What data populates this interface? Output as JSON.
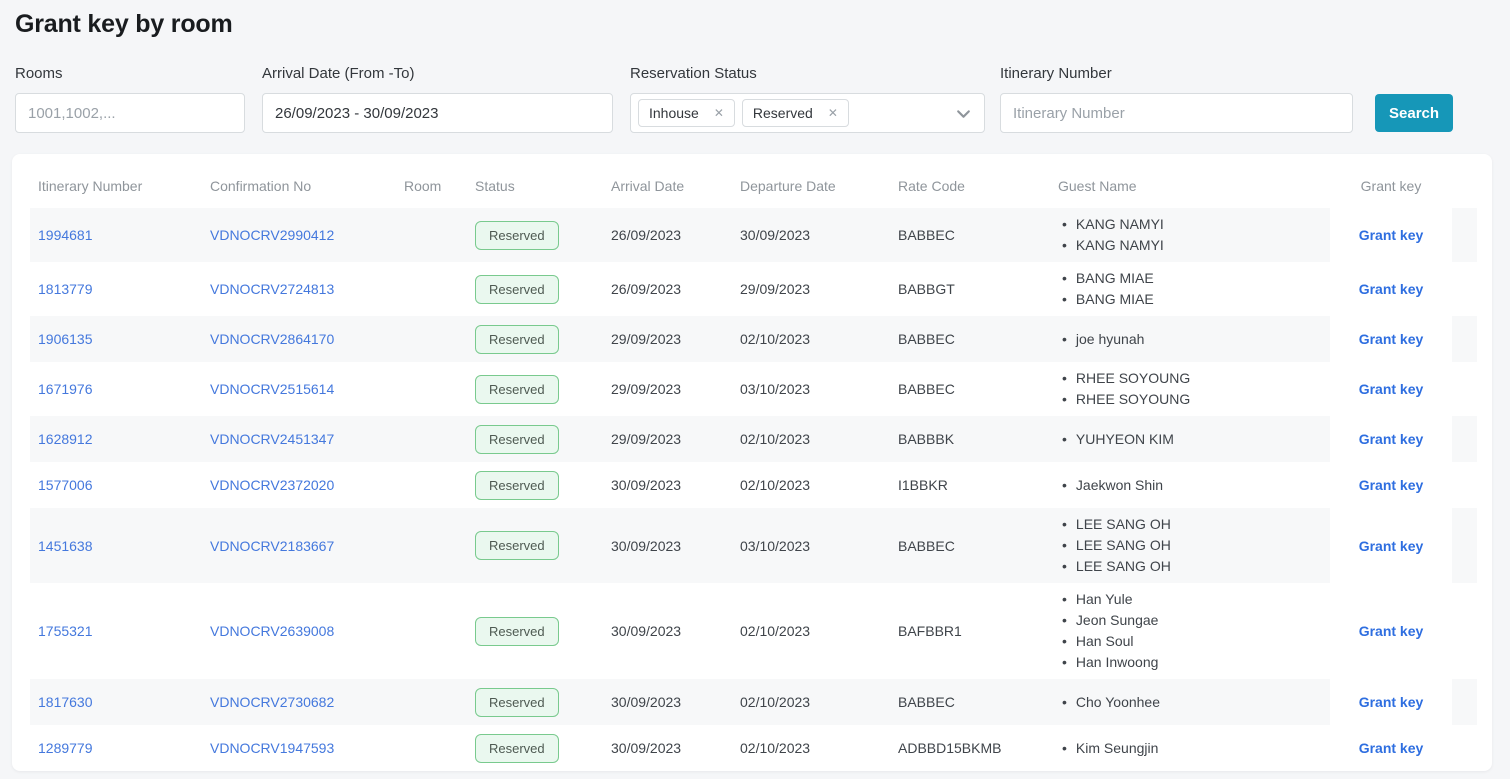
{
  "page": {
    "title": "Grant key by room"
  },
  "filters": {
    "rooms": {
      "label": "Rooms",
      "placeholder": "1001,1002,..."
    },
    "arrival_date": {
      "label": "Arrival Date (From -To)",
      "value": "26/09/2023 - 30/09/2023"
    },
    "reservation_status": {
      "label": "Reservation Status",
      "selected": [
        "Inhouse",
        "Reserved"
      ]
    },
    "itinerary_number": {
      "label": "Itinerary Number",
      "placeholder": "Itinerary Number"
    },
    "search_button": "Search"
  },
  "icons": {
    "close_glyph": "✕",
    "chevron_down": "chevron-down",
    "bullet": "•"
  },
  "colors": {
    "accent_teal": "#1697b8",
    "link_blue": "#4478dd",
    "grant_link_blue": "#2e6ee0",
    "badge_green_border": "#79ca8e",
    "badge_green_bg": "#eaf8ef",
    "stripe_gray": "#f7f8f9",
    "page_bg": "#f5f6f8"
  },
  "table": {
    "headers": [
      "Itinerary Number",
      "Confirmation No",
      "Room",
      "Status",
      "Arrival Date",
      "Departure Date",
      "Rate Code",
      "Guest Name",
      "Grant key"
    ],
    "grant_key_action": "Grant key",
    "rows": [
      {
        "itinerary_number": "1994681",
        "confirmation_no": "VDNOCRV2990412",
        "room": "",
        "status": "Reserved",
        "arrival_date": "26/09/2023",
        "departure_date": "30/09/2023",
        "rate_code": "BABBEC",
        "guests": [
          "KANG NAMYI",
          "KANG NAMYI"
        ]
      },
      {
        "itinerary_number": "1813779",
        "confirmation_no": "VDNOCRV2724813",
        "room": "",
        "status": "Reserved",
        "arrival_date": "26/09/2023",
        "departure_date": "29/09/2023",
        "rate_code": "BABBGT",
        "guests": [
          "BANG MIAE",
          "BANG MIAE"
        ]
      },
      {
        "itinerary_number": "1906135",
        "confirmation_no": "VDNOCRV2864170",
        "room": "",
        "status": "Reserved",
        "arrival_date": "29/09/2023",
        "departure_date": "02/10/2023",
        "rate_code": "BABBEC",
        "guests": [
          "joe hyunah"
        ]
      },
      {
        "itinerary_number": "1671976",
        "confirmation_no": "VDNOCRV2515614",
        "room": "",
        "status": "Reserved",
        "arrival_date": "29/09/2023",
        "departure_date": "03/10/2023",
        "rate_code": "BABBEC",
        "guests": [
          "RHEE SOYOUNG",
          "RHEE SOYOUNG"
        ]
      },
      {
        "itinerary_number": "1628912",
        "confirmation_no": "VDNOCRV2451347",
        "room": "",
        "status": "Reserved",
        "arrival_date": "29/09/2023",
        "departure_date": "02/10/2023",
        "rate_code": "BABBBK",
        "guests": [
          "YUHYEON KIM"
        ]
      },
      {
        "itinerary_number": "1577006",
        "confirmation_no": "VDNOCRV2372020",
        "room": "",
        "status": "Reserved",
        "arrival_date": "30/09/2023",
        "departure_date": "02/10/2023",
        "rate_code": "I1BBKR",
        "guests": [
          "Jaekwon Shin"
        ]
      },
      {
        "itinerary_number": "1451638",
        "confirmation_no": "VDNOCRV2183667",
        "room": "",
        "status": "Reserved",
        "arrival_date": "30/09/2023",
        "departure_date": "03/10/2023",
        "rate_code": "BABBEC",
        "guests": [
          "LEE SANG OH",
          "LEE SANG OH",
          "LEE SANG OH"
        ]
      },
      {
        "itinerary_number": "1755321",
        "confirmation_no": "VDNOCRV2639008",
        "room": "",
        "status": "Reserved",
        "arrival_date": "30/09/2023",
        "departure_date": "02/10/2023",
        "rate_code": "BAFBBR1",
        "guests": [
          "Han Yule",
          "Jeon Sungae",
          "Han Soul",
          "Han Inwoong"
        ]
      },
      {
        "itinerary_number": "1817630",
        "confirmation_no": "VDNOCRV2730682",
        "room": "",
        "status": "Reserved",
        "arrival_date": "30/09/2023",
        "departure_date": "02/10/2023",
        "rate_code": "BABBEC",
        "guests": [
          "Cho Yoonhee"
        ]
      },
      {
        "itinerary_number": "1289779",
        "confirmation_no": "VDNOCRV1947593",
        "room": "",
        "status": "Reserved",
        "arrival_date": "30/09/2023",
        "departure_date": "02/10/2023",
        "rate_code": "ADBBD15BKMB",
        "guests": [
          "Kim Seungjin"
        ]
      }
    ]
  }
}
